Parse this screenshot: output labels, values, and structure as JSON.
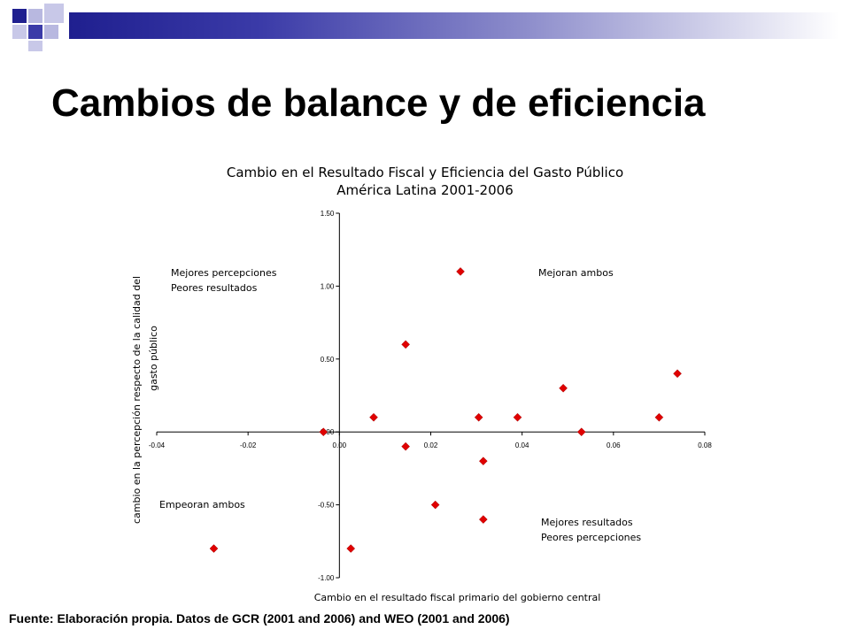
{
  "slide": {
    "title": "Cambios de balance y de eficiencia",
    "footer": "Fuente: Elaboración propia. Datos de GCR (2001 and 2006) and WEO (2001 and 2006)"
  },
  "colors": {
    "dark_blue": "#1f1f8f",
    "light_blue": "#8f8fcc",
    "marker": "#e00000"
  },
  "chart_data": {
    "type": "scatter",
    "title": "Cambio en el Resultado Fiscal y Eficiencia del Gasto Público",
    "subtitle": "América Latina 2001-2006",
    "xlabel": "Cambio en el resultado fiscal primario del gobierno central",
    "ylabel_line1": "cambio en la percepción respecto de la calidad del",
    "ylabel_line2": "gasto público",
    "xlim": [
      -0.04,
      0.08
    ],
    "ylim": [
      -1.0,
      1.5
    ],
    "x_ticks": [
      "-0.04",
      "-0.02",
      "0.00",
      "0.02",
      "0.04",
      "0.06",
      "0.08"
    ],
    "y_ticks": [
      "1.50",
      "1.00",
      "0.50",
      "0.00",
      "-0.50",
      "-1.00"
    ],
    "grid": false,
    "annotations": [
      {
        "text": "Mejores percepciones",
        "quadrant": "top-left",
        "line": 1
      },
      {
        "text": "Peores resultados",
        "quadrant": "top-left",
        "line": 2
      },
      {
        "text": "Mejoran ambos",
        "quadrant": "top-right",
        "line": 1
      },
      {
        "text": "Empeoran ambos",
        "quadrant": "bottom-left",
        "line": 1
      },
      {
        "text": "Mejores resultados",
        "quadrant": "bottom-right",
        "line": 1
      },
      {
        "text": "Peores percepciones",
        "quadrant": "bottom-right",
        "line": 2
      }
    ],
    "points": [
      {
        "x": -0.0275,
        "y": -0.8
      },
      {
        "x": -0.0035,
        "y": 0.0
      },
      {
        "x": 0.0025,
        "y": -0.8
      },
      {
        "x": 0.0075,
        "y": 0.1
      },
      {
        "x": 0.0145,
        "y": 0.6
      },
      {
        "x": 0.0145,
        "y": -0.1
      },
      {
        "x": 0.021,
        "y": -0.5
      },
      {
        "x": 0.0265,
        "y": 1.1
      },
      {
        "x": 0.0305,
        "y": 0.1
      },
      {
        "x": 0.0315,
        "y": -0.2
      },
      {
        "x": 0.0315,
        "y": -0.6
      },
      {
        "x": 0.039,
        "y": 0.1
      },
      {
        "x": 0.049,
        "y": 0.3
      },
      {
        "x": 0.053,
        "y": 0.0
      },
      {
        "x": 0.07,
        "y": 0.1
      },
      {
        "x": 0.074,
        "y": 0.4
      }
    ]
  }
}
